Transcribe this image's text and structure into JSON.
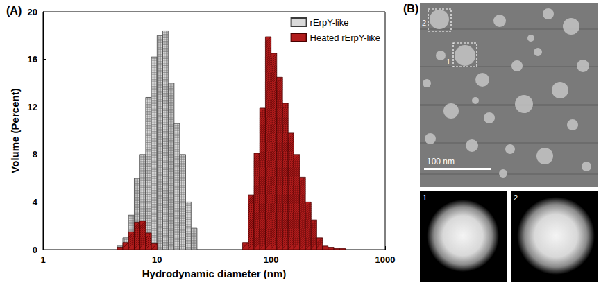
{
  "chart_data": {
    "type": "bar",
    "title": "(A)",
    "xlabel": "Hydrodynamic diameter (nm)",
    "ylabel": "Volume (Percent)",
    "log": "x",
    "xlim": [
      1,
      1000
    ],
    "xticks": [
      1,
      10,
      100,
      1000
    ],
    "ylim": [
      0,
      20
    ],
    "yticks": [
      0,
      4,
      8,
      12,
      16,
      20
    ],
    "grid": false,
    "legend": "upper right",
    "series": [
      {
        "name": "rErpY-like",
        "color": "#d9d9d9",
        "bins": [
          4.47,
          5.01,
          5.62,
          6.31,
          7.08,
          7.94,
          8.91,
          10,
          11.2,
          12.6,
          14.1,
          15.8,
          17.8,
          20,
          22.4
        ],
        "values": [
          0.3,
          1.0,
          2.9,
          6.0,
          8.0,
          12.8,
          16.2,
          18.0,
          18.4,
          14.0,
          10.6,
          8.0,
          4.0,
          1.8
        ]
      },
      {
        "name": "Heated rErpY-like",
        "color": "#b01c1c",
        "bins": [
          4.47,
          5.01,
          5.62,
          6.31,
          7.08,
          7.94,
          8.91,
          10,
          11.2,
          12.6,
          14.1,
          15.8,
          17.8,
          20,
          22.4,
          25.1,
          28.2,
          31.6,
          35.5,
          39.8,
          44.7,
          50.1,
          56.2,
          63.1,
          70.8,
          79.4,
          89.1,
          100,
          112,
          126,
          141,
          158,
          178,
          200,
          224,
          251,
          282,
          316,
          355,
          398,
          447
        ],
        "values": [
          0.2,
          0.6,
          1.5,
          2.3,
          2.4,
          1.4,
          0.5,
          0,
          0,
          0,
          0,
          0,
          0,
          0,
          0,
          0,
          0,
          0,
          0,
          0,
          0,
          0,
          0.6,
          4.6,
          8.1,
          11.9,
          17.9,
          16.5,
          14.5,
          12.3,
          9.8,
          8.0,
          6.1,
          4.0,
          2.5,
          1.0,
          0.3,
          0.2,
          0.1,
          0.1
        ]
      }
    ]
  },
  "image_panel": {
    "title": "(B)",
    "scale_bar": "100 nm",
    "insets": [
      "1",
      "2"
    ]
  }
}
